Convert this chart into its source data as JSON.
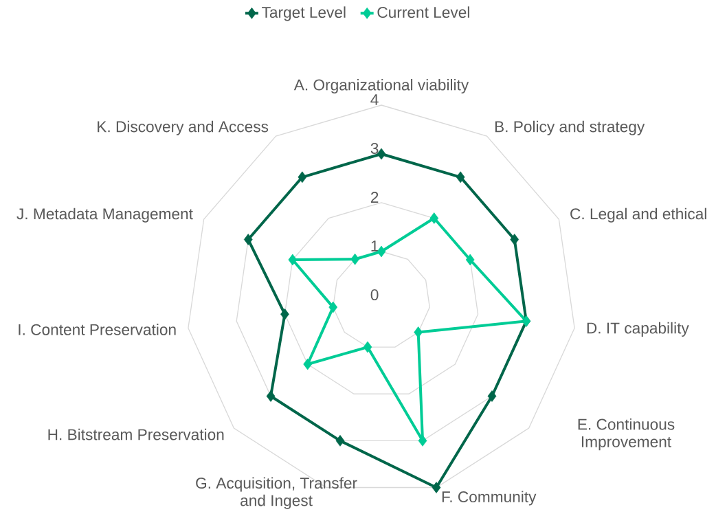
{
  "chart_data": {
    "type": "radar",
    "categories": [
      "A. Organizational viability",
      "B. Policy and strategy",
      "C. Legal and ethical",
      "D. IT capability",
      "E. Continuous Improvement",
      "F. Community",
      "G. Acquisition, Transfer and Ingest",
      "H. Bitstream Preservation",
      "I. Content Preservation",
      "J. Metadata Management",
      "K. Discovery and Access"
    ],
    "series": [
      {
        "name": "Target Level",
        "color": "#00664a",
        "values": [
          3,
          3,
          3,
          3,
          3,
          4,
          3,
          3,
          2,
          3,
          3
        ]
      },
      {
        "name": "Current Level",
        "color": "#00cc96",
        "values": [
          1,
          2,
          2,
          3,
          1,
          3,
          1,
          2,
          1,
          2,
          1
        ]
      }
    ],
    "ylim": [
      0,
      4
    ],
    "yticks": [
      0,
      1,
      2,
      3,
      4
    ],
    "grid": true,
    "legend": "top",
    "marker": "diamond",
    "line_style": "solid"
  }
}
